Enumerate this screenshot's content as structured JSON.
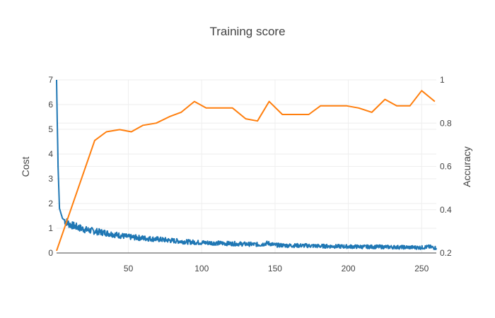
{
  "chart_data": {
    "type": "line",
    "title": "Training score",
    "xlabel": "",
    "ylabel": "Cost",
    "y2label": "Accuracy",
    "xlim": [
      1,
      260
    ],
    "ylim": [
      0,
      7
    ],
    "y2lim": [
      0.2,
      1.0
    ],
    "xticks": [
      50,
      100,
      150,
      200,
      250
    ],
    "yticks": [
      0,
      1,
      2,
      3,
      4,
      5,
      6,
      7
    ],
    "y2ticks": [
      0.2,
      0.4,
      0.6,
      0.8,
      1
    ],
    "grid": true,
    "series": [
      {
        "axis": "left",
        "color": "#1f77b4",
        "noise": 0.09,
        "x": [
          1,
          2,
          3,
          4,
          5,
          7,
          10,
          15,
          20,
          25,
          30,
          34,
          40,
          50,
          60,
          71,
          80,
          90,
          100,
          110,
          120,
          130,
          140,
          145,
          150,
          160,
          170,
          180,
          190,
          200,
          210,
          220,
          230,
          240,
          250,
          255,
          260
        ],
        "y": [
          7.0,
          3.5,
          1.8,
          1.6,
          1.4,
          1.3,
          1.15,
          1.05,
          0.95,
          0.9,
          0.85,
          0.82,
          0.75,
          0.65,
          0.6,
          0.55,
          0.5,
          0.45,
          0.42,
          0.4,
          0.38,
          0.36,
          0.34,
          0.4,
          0.32,
          0.3,
          0.3,
          0.28,
          0.27,
          0.26,
          0.25,
          0.25,
          0.24,
          0.23,
          0.22,
          0.25,
          0.2
        ]
      },
      {
        "axis": "right",
        "color": "#ff7f0e",
        "x": [
          1,
          27,
          35,
          44,
          52,
          60,
          69,
          78,
          86,
          95,
          103,
          112,
          121,
          130,
          138,
          146,
          155,
          164,
          173,
          181,
          190,
          199,
          207,
          216,
          225,
          233,
          242,
          250,
          259
        ],
        "y": [
          0.21,
          0.72,
          0.76,
          0.77,
          0.76,
          0.79,
          0.8,
          0.83,
          0.85,
          0.9,
          0.87,
          0.87,
          0.87,
          0.82,
          0.81,
          0.9,
          0.84,
          0.84,
          0.84,
          0.88,
          0.88,
          0.88,
          0.87,
          0.85,
          0.91,
          0.88,
          0.88,
          0.95,
          0.9
        ]
      }
    ]
  }
}
